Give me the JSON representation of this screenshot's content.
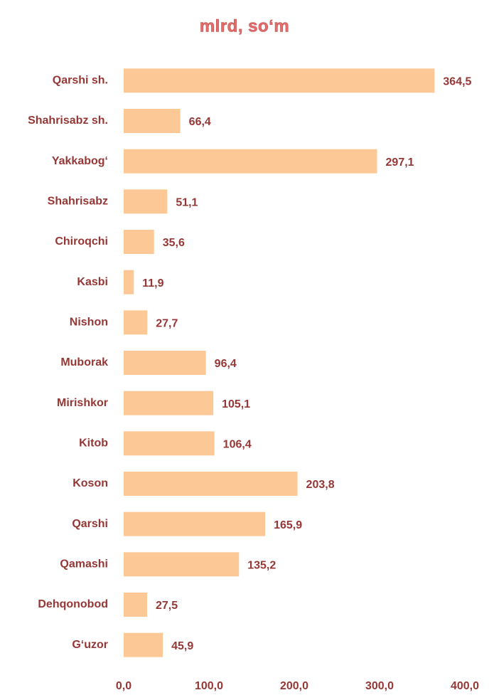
{
  "chart_data": {
    "type": "bar",
    "orientation": "horizontal",
    "title": "mlrd, so‘m",
    "categories": [
      "Qarshi sh.",
      "Shahrisabz sh.",
      "Yakkabog‘",
      "Shahrisabz",
      "Chiroqchi",
      "Kasbi",
      "Nishon",
      "Muborak",
      "Mirishkor",
      "Kitob",
      "Koson",
      "Qarshi",
      "Qamashi",
      "Dehqonobod",
      "G‘uzor"
    ],
    "values": [
      364.5,
      66.4,
      297.1,
      51.1,
      35.6,
      11.9,
      27.7,
      96.4,
      105.1,
      106.4,
      203.8,
      165.9,
      135.2,
      27.5,
      45.9
    ],
    "value_labels": [
      "364,5",
      "66,4",
      "297,1",
      "51,1",
      "35,6",
      "11,9",
      "27,7",
      "96,4",
      "105,1",
      "106,4",
      "203,8",
      "165,9",
      "135,2",
      "27,5",
      "45,9"
    ],
    "color": "#fcc896",
    "xlim": [
      0,
      400
    ],
    "xticks": [
      {
        "value": 0,
        "label": "0,0"
      },
      {
        "value": 100,
        "label": "100,0"
      },
      {
        "value": 200,
        "label": "200,0"
      },
      {
        "value": 300,
        "label": "300,0"
      },
      {
        "value": 400,
        "label": "400,0"
      }
    ],
    "grid": false
  }
}
